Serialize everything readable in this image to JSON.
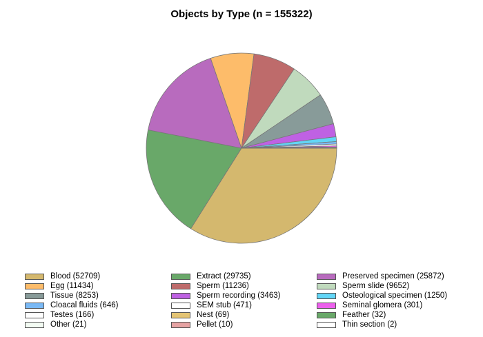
{
  "chart_data": {
    "type": "pie",
    "title": "Objects by Type (n = 155322)",
    "legend_position": "bottom",
    "slices": [
      {
        "label": "Blood (52709)",
        "value": 52709,
        "color": "#d4b86e"
      },
      {
        "label": "Extract (29735)",
        "value": 29735,
        "color": "#69a869"
      },
      {
        "label": "Preserved specimen (25872)",
        "value": 25872,
        "color": "#b86bbe"
      },
      {
        "label": "Egg (11434)",
        "value": 11434,
        "color": "#fdbc6a"
      },
      {
        "label": "Sperm (11236)",
        "value": 11236,
        "color": "#be6b6b"
      },
      {
        "label": "Sperm slide (9652)",
        "value": 9652,
        "color": "#c0dabd"
      },
      {
        "label": "Tissue (8253)",
        "value": 8253,
        "color": "#889b99"
      },
      {
        "label": "Sperm recording (3463)",
        "value": 3463,
        "color": "#bf61e3"
      },
      {
        "label": "Osteological specimen (1250)",
        "value": 1250,
        "color": "#62d6f7"
      },
      {
        "label": "Cloacal fluids (646)",
        "value": 646,
        "color": "#7ab9f5"
      },
      {
        "label": "SEM stub (471)",
        "value": 471,
        "color": "#ffffff"
      },
      {
        "label": "Seminal glomera (301)",
        "value": 301,
        "color": "#ec60ec"
      },
      {
        "label": "Testes (166)",
        "value": 166,
        "color": "#ffffff"
      },
      {
        "label": "Nest (69)",
        "value": 69,
        "color": "#e4c474"
      },
      {
        "label": "Feather (32)",
        "value": 32,
        "color": "#69a869"
      },
      {
        "label": "Other (21)",
        "value": 21,
        "color": "#f3fbf3"
      },
      {
        "label": "Pellet (10)",
        "value": 10,
        "color": "#e6a3a3"
      },
      {
        "label": "Thin section (2)",
        "value": 2,
        "color": "#ffffff"
      }
    ]
  }
}
